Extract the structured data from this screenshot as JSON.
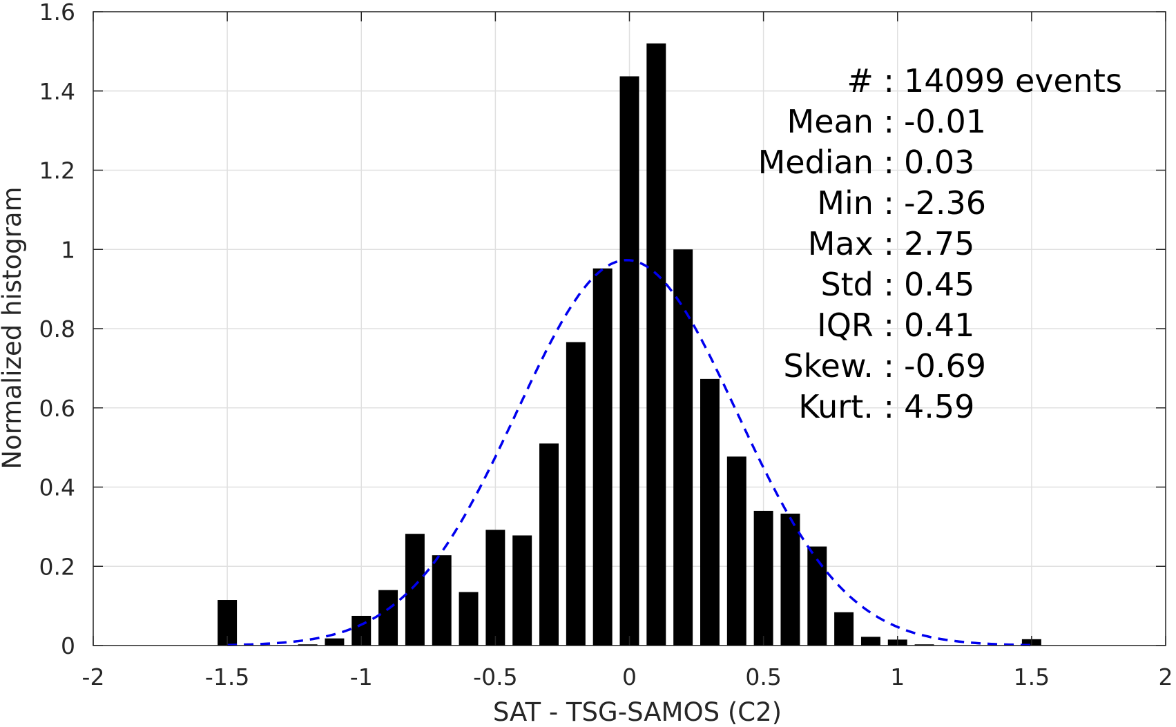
{
  "chart_data": {
    "type": "bar",
    "xlabel": "SAT - TSG-SAMOS (C2)",
    "ylabel": "Normalized histogram",
    "xlim": [
      -2,
      2
    ],
    "ylim": [
      0,
      1.6
    ],
    "grid": true,
    "xticks": [
      -2,
      -1.5,
      -1,
      -0.5,
      0,
      0.5,
      1,
      1.5,
      2
    ],
    "xtick_labels": [
      "-2",
      "-1.5",
      "-1",
      "-0.5",
      "0",
      "0.5",
      "1",
      "1.5",
      "2"
    ],
    "yticks": [
      0,
      0.2,
      0.4,
      0.6,
      0.8,
      1,
      1.2,
      1.4,
      1.6
    ],
    "ytick_labels": [
      "0",
      "0.2",
      "0.4",
      "0.6",
      "0.8",
      "1",
      "1.2",
      "1.4",
      "1.6"
    ],
    "bin_width": 0.1,
    "series": [
      {
        "kind": "bars",
        "color": "#000000",
        "x": [
          -1.5,
          -1.2,
          -1.1,
          -1.0,
          -0.9,
          -0.8,
          -0.7,
          -0.6,
          -0.5,
          -0.4,
          -0.3,
          -0.2,
          -0.1,
          0.0,
          0.1,
          0.2,
          0.3,
          0.4,
          0.5,
          0.6,
          0.7,
          0.8,
          0.9,
          1.0,
          1.1,
          1.5
        ],
        "values": [
          0.115,
          0.003,
          0.018,
          0.075,
          0.14,
          0.282,
          0.228,
          0.135,
          0.292,
          0.278,
          0.51,
          0.766,
          0.952,
          1.437,
          1.52,
          1.0,
          0.673,
          0.477,
          0.34,
          0.333,
          0.25,
          0.084,
          0.022,
          0.015,
          0.003,
          0.016
        ]
      },
      {
        "kind": "fit",
        "line_style": "dashed",
        "color": "#0000ee",
        "mean": -0.01,
        "std": 0.41,
        "x_range": [
          -1.5,
          1.5
        ]
      }
    ],
    "annotations": [
      {
        "label": "#  :",
        "value": "14099 events"
      },
      {
        "label": "Mean :",
        "value": "-0.01"
      },
      {
        "label": "Median :",
        "value": "0.03"
      },
      {
        "label": "Min :",
        "value": "-2.36"
      },
      {
        "label": "Max :",
        "value": "2.75"
      },
      {
        "label": "Std :",
        "value": "0.45"
      },
      {
        "label": "IQR :",
        "value": "0.41"
      },
      {
        "label": "Skew. :",
        "value": "-0.69"
      },
      {
        "label": "Kurt. :",
        "value": "4.59"
      }
    ]
  }
}
